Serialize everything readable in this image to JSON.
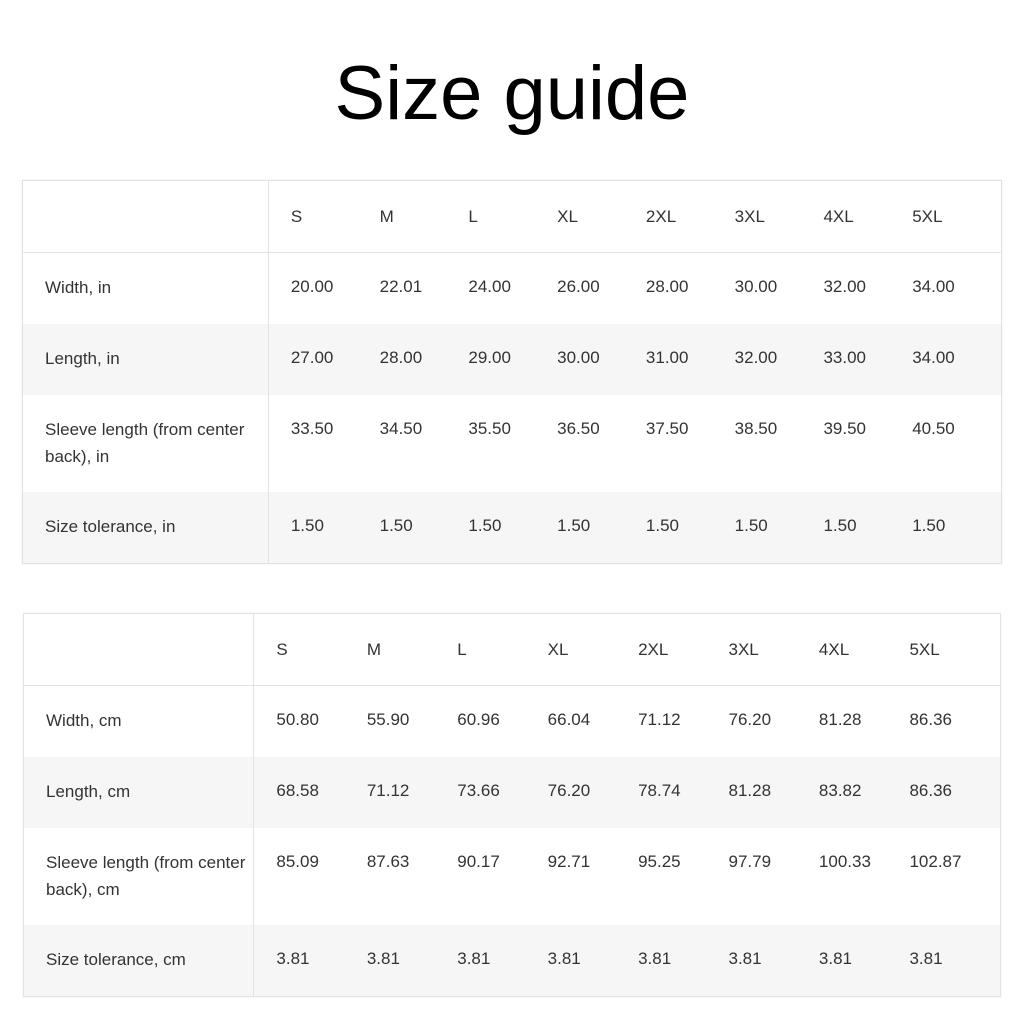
{
  "title": "Size guide",
  "sizes": [
    "S",
    "M",
    "L",
    "XL",
    "2XL",
    "3XL",
    "4XL",
    "5XL"
  ],
  "tables": [
    {
      "rows": [
        {
          "label": "Width, in",
          "values": [
            "20.00",
            "22.01",
            "24.00",
            "26.00",
            "28.00",
            "30.00",
            "32.00",
            "34.00"
          ]
        },
        {
          "label": "Length, in",
          "values": [
            "27.00",
            "28.00",
            "29.00",
            "30.00",
            "31.00",
            "32.00",
            "33.00",
            "34.00"
          ]
        },
        {
          "label": "Sleeve length (from center back), in",
          "values": [
            "33.50",
            "34.50",
            "35.50",
            "36.50",
            "37.50",
            "38.50",
            "39.50",
            "40.50"
          ]
        },
        {
          "label": "Size tolerance, in",
          "values": [
            "1.50",
            "1.50",
            "1.50",
            "1.50",
            "1.50",
            "1.50",
            "1.50",
            "1.50"
          ]
        }
      ]
    },
    {
      "rows": [
        {
          "label": "Width, cm",
          "values": [
            "50.80",
            "55.90",
            "60.96",
            "66.04",
            "71.12",
            "76.20",
            "81.28",
            "86.36"
          ]
        },
        {
          "label": "Length, cm",
          "values": [
            "68.58",
            "71.12",
            "73.66",
            "76.20",
            "78.74",
            "81.28",
            "83.82",
            "86.36"
          ]
        },
        {
          "label": "Sleeve length (from center back), cm",
          "values": [
            "85.09",
            "87.63",
            "90.17",
            "92.71",
            "95.25",
            "97.79",
            "100.33",
            "102.87"
          ]
        },
        {
          "label": "Size tolerance, cm",
          "values": [
            "3.81",
            "3.81",
            "3.81",
            "3.81",
            "3.81",
            "3.81",
            "3.81",
            "3.81"
          ]
        }
      ]
    }
  ]
}
